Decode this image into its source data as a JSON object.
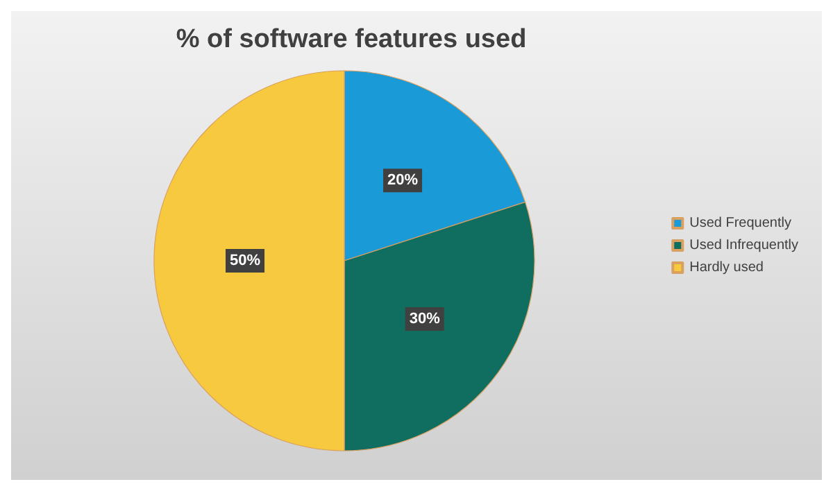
{
  "chart_data": {
    "type": "pie",
    "title": "% of software features used",
    "categories": [
      "Used Frequently",
      "Used Infrequently",
      "Hardly used"
    ],
    "values": [
      20,
      30,
      50
    ],
    "colors": [
      "#1a9ad6",
      "#0f6e60",
      "#f7c93e"
    ],
    "value_labels": [
      "20%",
      "30%",
      "50%"
    ],
    "legend": "right"
  }
}
